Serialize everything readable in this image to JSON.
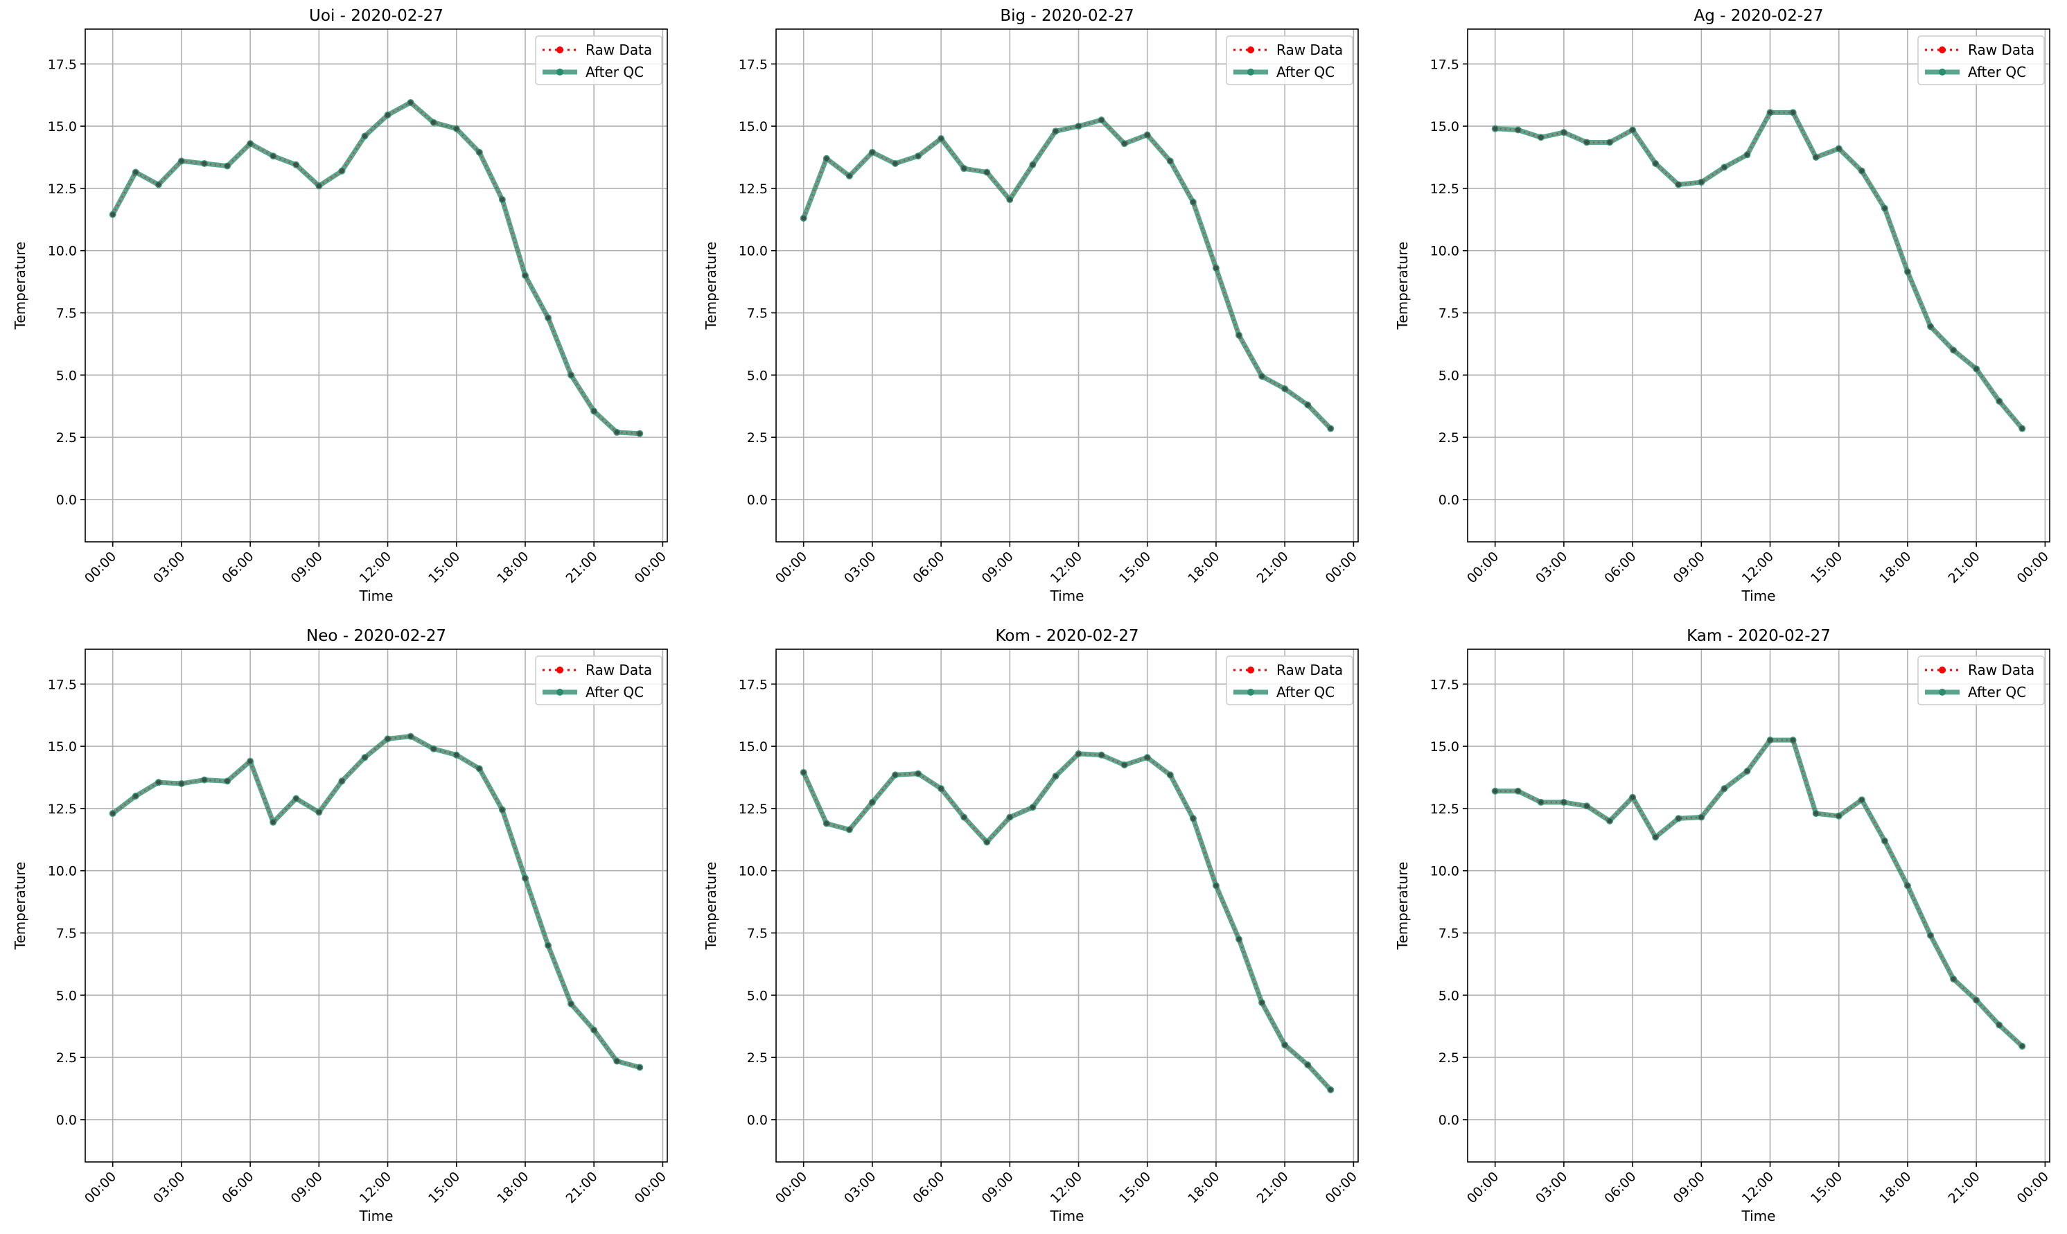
{
  "chart_data": [
    {
      "type": "line",
      "title": "Uoi - 2020-02-27",
      "xlabel": "Time",
      "ylabel": "Temperature",
      "x": [
        "00:00",
        "01:00",
        "02:00",
        "03:00",
        "04:00",
        "05:00",
        "06:00",
        "07:00",
        "08:00",
        "09:00",
        "10:00",
        "11:00",
        "12:00",
        "13:00",
        "14:00",
        "15:00",
        "16:00",
        "17:00",
        "18:00",
        "19:00",
        "20:00",
        "21:00",
        "22:00",
        "23:00"
      ],
      "x_ticks": [
        "00:00",
        "03:00",
        "06:00",
        "09:00",
        "12:00",
        "15:00",
        "18:00",
        "21:00",
        "00:00"
      ],
      "xlim_hours": [
        -1.2,
        24.2
      ],
      "ylim": [
        -1.7,
        18.9
      ],
      "y_ticks": [
        "0.0",
        "2.5",
        "5.0",
        "7.5",
        "10.0",
        "12.5",
        "15.0",
        "17.5"
      ],
      "grid": true,
      "legend_position": "top-right",
      "series": [
        {
          "name": "Raw Data",
          "color": "#ff0000",
          "style": "dotted",
          "values": [
            11.45,
            13.15,
            12.65,
            13.6,
            13.5,
            13.4,
            14.3,
            13.8,
            13.45,
            12.6,
            13.2,
            14.6,
            15.45,
            15.95,
            15.15,
            14.9,
            13.95,
            12.05,
            9.0,
            7.3,
            5.0,
            3.55,
            2.7,
            2.65
          ]
        },
        {
          "name": "After QC",
          "color": "#2a8c6e",
          "style": "solid",
          "values": [
            11.45,
            13.15,
            12.65,
            13.6,
            13.5,
            13.4,
            14.3,
            13.8,
            13.45,
            12.6,
            13.2,
            14.6,
            15.45,
            15.95,
            15.15,
            14.9,
            13.95,
            12.05,
            9.0,
            7.3,
            5.0,
            3.55,
            2.7,
            2.65
          ]
        }
      ]
    },
    {
      "type": "line",
      "title": "Big - 2020-02-27",
      "xlabel": "Time",
      "ylabel": "Temperature",
      "x": [
        "00:00",
        "01:00",
        "02:00",
        "03:00",
        "04:00",
        "05:00",
        "06:00",
        "07:00",
        "08:00",
        "09:00",
        "10:00",
        "11:00",
        "12:00",
        "13:00",
        "14:00",
        "15:00",
        "16:00",
        "17:00",
        "18:00",
        "19:00",
        "20:00",
        "21:00",
        "22:00",
        "23:00"
      ],
      "x_ticks": [
        "00:00",
        "03:00",
        "06:00",
        "09:00",
        "12:00",
        "15:00",
        "18:00",
        "21:00",
        "00:00"
      ],
      "xlim_hours": [
        -1.2,
        24.2
      ],
      "ylim": [
        -1.7,
        18.9
      ],
      "y_ticks": [
        "0.0",
        "2.5",
        "5.0",
        "7.5",
        "10.0",
        "12.5",
        "15.0",
        "17.5"
      ],
      "grid": true,
      "legend_position": "top-right",
      "series": [
        {
          "name": "Raw Data",
          "color": "#ff0000",
          "style": "dotted",
          "values": [
            11.3,
            13.7,
            13.0,
            13.95,
            13.5,
            13.8,
            14.5,
            13.3,
            13.15,
            12.05,
            13.45,
            14.8,
            15.0,
            15.25,
            14.3,
            14.65,
            13.6,
            11.95,
            9.3,
            6.6,
            4.95,
            4.45,
            3.8,
            2.85
          ]
        },
        {
          "name": "After QC",
          "color": "#2a8c6e",
          "style": "solid",
          "values": [
            11.3,
            13.7,
            13.0,
            13.95,
            13.5,
            13.8,
            14.5,
            13.3,
            13.15,
            12.05,
            13.45,
            14.8,
            15.0,
            15.25,
            14.3,
            14.65,
            13.6,
            11.95,
            9.3,
            6.6,
            4.95,
            4.45,
            3.8,
            2.85
          ]
        }
      ]
    },
    {
      "type": "line",
      "title": "Ag - 2020-02-27",
      "xlabel": "Time",
      "ylabel": "Temperature",
      "x": [
        "00:00",
        "01:00",
        "02:00",
        "03:00",
        "04:00",
        "05:00",
        "06:00",
        "07:00",
        "08:00",
        "09:00",
        "10:00",
        "11:00",
        "12:00",
        "13:00",
        "14:00",
        "15:00",
        "16:00",
        "17:00",
        "18:00",
        "19:00",
        "20:00",
        "21:00",
        "22:00",
        "23:00"
      ],
      "x_ticks": [
        "00:00",
        "03:00",
        "06:00",
        "09:00",
        "12:00",
        "15:00",
        "18:00",
        "21:00",
        "00:00"
      ],
      "xlim_hours": [
        -1.2,
        24.2
      ],
      "ylim": [
        -1.7,
        18.9
      ],
      "y_ticks": [
        "0.0",
        "2.5",
        "5.0",
        "7.5",
        "10.0",
        "12.5",
        "15.0",
        "17.5"
      ],
      "grid": true,
      "legend_position": "top-right",
      "series": [
        {
          "name": "Raw Data",
          "color": "#ff0000",
          "style": "dotted",
          "values": [
            14.9,
            14.85,
            14.55,
            14.75,
            14.35,
            14.35,
            14.85,
            13.5,
            12.65,
            12.75,
            13.35,
            13.85,
            15.55,
            15.55,
            13.75,
            14.1,
            13.2,
            11.7,
            9.15,
            6.95,
            6.0,
            5.25,
            3.95,
            2.85
          ]
        },
        {
          "name": "After QC",
          "color": "#2a8c6e",
          "style": "solid",
          "values": [
            14.9,
            14.85,
            14.55,
            14.75,
            14.35,
            14.35,
            14.85,
            13.5,
            12.65,
            12.75,
            13.35,
            13.85,
            15.55,
            15.55,
            13.75,
            14.1,
            13.2,
            11.7,
            9.15,
            6.95,
            6.0,
            5.25,
            3.95,
            2.85
          ]
        }
      ]
    },
    {
      "type": "line",
      "title": "Neo - 2020-02-27",
      "xlabel": "Time",
      "ylabel": "Temperature",
      "x": [
        "00:00",
        "01:00",
        "02:00",
        "03:00",
        "04:00",
        "05:00",
        "06:00",
        "07:00",
        "08:00",
        "09:00",
        "10:00",
        "11:00",
        "12:00",
        "13:00",
        "14:00",
        "15:00",
        "16:00",
        "17:00",
        "18:00",
        "19:00",
        "20:00",
        "21:00",
        "22:00",
        "23:00"
      ],
      "x_ticks": [
        "00:00",
        "03:00",
        "06:00",
        "09:00",
        "12:00",
        "15:00",
        "18:00",
        "21:00",
        "00:00"
      ],
      "xlim_hours": [
        -1.2,
        24.2
      ],
      "ylim": [
        -1.7,
        18.9
      ],
      "y_ticks": [
        "0.0",
        "2.5",
        "5.0",
        "7.5",
        "10.0",
        "12.5",
        "15.0",
        "17.5"
      ],
      "grid": true,
      "legend_position": "top-right",
      "series": [
        {
          "name": "Raw Data",
          "color": "#ff0000",
          "style": "dotted",
          "values": [
            12.3,
            13.0,
            13.55,
            13.5,
            13.65,
            13.6,
            14.4,
            11.95,
            12.9,
            12.35,
            13.6,
            14.55,
            15.3,
            15.4,
            14.9,
            14.65,
            14.1,
            12.45,
            9.7,
            7.0,
            4.65,
            3.6,
            2.35,
            2.1
          ]
        },
        {
          "name": "After QC",
          "color": "#2a8c6e",
          "style": "solid",
          "values": [
            12.3,
            13.0,
            13.55,
            13.5,
            13.65,
            13.6,
            14.4,
            11.95,
            12.9,
            12.35,
            13.6,
            14.55,
            15.3,
            15.4,
            14.9,
            14.65,
            14.1,
            12.45,
            9.7,
            7.0,
            4.65,
            3.6,
            2.35,
            2.1
          ]
        }
      ]
    },
    {
      "type": "line",
      "title": "Kom - 2020-02-27",
      "xlabel": "Time",
      "ylabel": "Temperature",
      "x": [
        "00:00",
        "01:00",
        "02:00",
        "03:00",
        "04:00",
        "05:00",
        "06:00",
        "07:00",
        "08:00",
        "09:00",
        "10:00",
        "11:00",
        "12:00",
        "13:00",
        "14:00",
        "15:00",
        "16:00",
        "17:00",
        "18:00",
        "19:00",
        "20:00",
        "21:00",
        "22:00",
        "23:00"
      ],
      "x_ticks": [
        "00:00",
        "03:00",
        "06:00",
        "09:00",
        "12:00",
        "15:00",
        "18:00",
        "21:00",
        "00:00"
      ],
      "xlim_hours": [
        -1.2,
        24.2
      ],
      "ylim": [
        -1.7,
        18.9
      ],
      "y_ticks": [
        "0.0",
        "2.5",
        "5.0",
        "7.5",
        "10.0",
        "12.5",
        "15.0",
        "17.5"
      ],
      "grid": true,
      "legend_position": "top-right",
      "series": [
        {
          "name": "Raw Data",
          "color": "#ff0000",
          "style": "dotted",
          "values": [
            13.95,
            11.9,
            11.65,
            12.75,
            13.85,
            13.9,
            13.3,
            12.15,
            11.15,
            12.15,
            12.55,
            13.8,
            14.7,
            14.65,
            14.25,
            14.55,
            13.85,
            12.1,
            9.4,
            7.25,
            4.7,
            3.0,
            2.2,
            1.2
          ]
        },
        {
          "name": "After QC",
          "color": "#2a8c6e",
          "style": "solid",
          "values": [
            13.95,
            11.9,
            11.65,
            12.75,
            13.85,
            13.9,
            13.3,
            12.15,
            11.15,
            12.15,
            12.55,
            13.8,
            14.7,
            14.65,
            14.25,
            14.55,
            13.85,
            12.1,
            9.4,
            7.25,
            4.7,
            3.0,
            2.2,
            1.2
          ]
        }
      ]
    },
    {
      "type": "line",
      "title": "Kam - 2020-02-27",
      "xlabel": "Time",
      "ylabel": "Temperature",
      "x": [
        "00:00",
        "01:00",
        "02:00",
        "03:00",
        "04:00",
        "05:00",
        "06:00",
        "07:00",
        "08:00",
        "09:00",
        "10:00",
        "11:00",
        "12:00",
        "13:00",
        "14:00",
        "15:00",
        "16:00",
        "17:00",
        "18:00",
        "19:00",
        "20:00",
        "21:00",
        "22:00",
        "23:00"
      ],
      "x_ticks": [
        "00:00",
        "03:00",
        "06:00",
        "09:00",
        "12:00",
        "15:00",
        "18:00",
        "21:00",
        "00:00"
      ],
      "xlim_hours": [
        -1.2,
        24.2
      ],
      "ylim": [
        -1.7,
        18.9
      ],
      "y_ticks": [
        "0.0",
        "2.5",
        "5.0",
        "7.5",
        "10.0",
        "12.5",
        "15.0",
        "17.5"
      ],
      "grid": true,
      "legend_position": "top-right",
      "series": [
        {
          "name": "Raw Data",
          "color": "#ff0000",
          "style": "dotted",
          "values": [
            13.2,
            13.2,
            12.75,
            12.75,
            12.6,
            12.0,
            12.95,
            11.35,
            12.1,
            12.15,
            13.3,
            14.0,
            15.25,
            15.25,
            12.3,
            12.2,
            12.85,
            11.2,
            9.4,
            7.4,
            5.65,
            4.8,
            3.8,
            2.95
          ]
        },
        {
          "name": "After QC",
          "color": "#2a8c6e",
          "style": "solid",
          "values": [
            13.2,
            13.2,
            12.75,
            12.75,
            12.6,
            12.0,
            12.95,
            11.35,
            12.1,
            12.15,
            13.3,
            14.0,
            15.25,
            15.25,
            12.3,
            12.2,
            12.85,
            11.2,
            9.4,
            7.4,
            5.65,
            4.8,
            3.8,
            2.95
          ]
        }
      ]
    }
  ]
}
